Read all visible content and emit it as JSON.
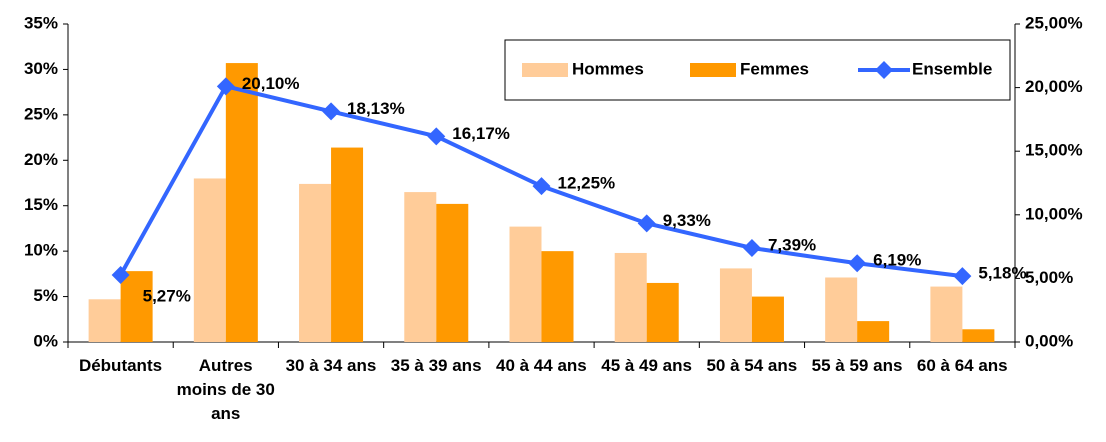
{
  "chart_data": {
    "type": "bar",
    "categories": [
      "Débutants",
      "Autres moins de 30 ans",
      "30 à 34 ans",
      "35 à 39 ans",
      "40 à 44 ans",
      "45 à 49 ans",
      "50 à 54 ans",
      "55 à 59 ans",
      "60 à 64 ans"
    ],
    "series": [
      {
        "name": "Hommes",
        "type": "bar",
        "color": "#ffcc99",
        "values": [
          4.7,
          18.0,
          17.4,
          16.5,
          12.7,
          9.8,
          8.1,
          7.1,
          6.1
        ]
      },
      {
        "name": "Femmes",
        "type": "bar",
        "color": "#ff9900",
        "values": [
          7.8,
          30.7,
          21.4,
          15.2,
          10.0,
          6.5,
          5.0,
          2.3,
          1.4
        ]
      },
      {
        "name": "Ensemble",
        "type": "line",
        "axis": "y2",
        "color": "#3366ff",
        "values": [
          5.27,
          20.1,
          18.13,
          16.17,
          12.25,
          9.33,
          7.39,
          6.19,
          5.18
        ],
        "value_labels": [
          "5,27%",
          "20,10%",
          "18,13%",
          "16,17%",
          "12,25%",
          "9,33%",
          "7,39%",
          "6,19%",
          "5,18%"
        ]
      }
    ],
    "ylim": [
      0,
      35
    ],
    "yticks": [
      {
        "value": 0,
        "label": "0%"
      },
      {
        "value": 5,
        "label": "5%"
      },
      {
        "value": 10,
        "label": "10%"
      },
      {
        "value": 15,
        "label": "15%"
      },
      {
        "value": 20,
        "label": "20%"
      },
      {
        "value": 25,
        "label": "25%"
      },
      {
        "value": 30,
        "label": "30%"
      },
      {
        "value": 35,
        "label": "35%"
      }
    ],
    "y2lim": [
      0,
      25
    ],
    "y2ticks": [
      {
        "value": 0,
        "label": "0,00%"
      },
      {
        "value": 5,
        "label": "5,00%"
      },
      {
        "value": 10,
        "label": "10,00%"
      },
      {
        "value": 15,
        "label": "15,00%"
      },
      {
        "value": 20,
        "label": "20,00%"
      },
      {
        "value": 25,
        "label": "25,00%"
      }
    ],
    "legend": "top-right",
    "grid": false
  }
}
